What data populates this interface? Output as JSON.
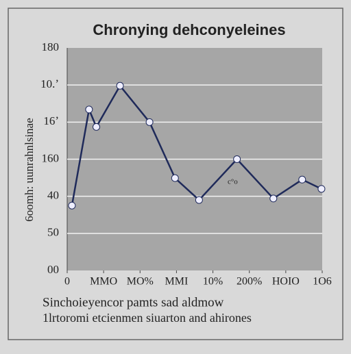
{
  "chart_data": {
    "type": "line",
    "title": "Chronying dehconyeleines",
    "y_label": "6oomh: uunrahnlsinae",
    "caption": [
      "Sinchoieyencor pamts sad aldmow",
      "1lrtoromi etcienmen siuarton and ahirones"
    ],
    "annotation": "c°o",
    "x": [
      0.13,
      0.6,
      0.8,
      1.45,
      2.26,
      2.96,
      3.62,
      4.66,
      5.66,
      6.45,
      6.98
    ],
    "series": [
      {
        "color": "#1f2a5a",
        "values": [
          1.75,
          4.34,
          3.87,
          4.98,
          4.0,
          2.49,
          1.9,
          3.0,
          1.94,
          2.45,
          2.2
        ]
      }
    ],
    "xlim": [
      0,
      7
    ],
    "xticks": [
      {
        "value": 0,
        "label": "0"
      },
      {
        "value": 1,
        "label": "MMO"
      },
      {
        "value": 2,
        "label": "MO%"
      },
      {
        "value": 3,
        "label": "MMI"
      },
      {
        "value": 4,
        "label": "10%"
      },
      {
        "value": 5,
        "label": "200%"
      },
      {
        "value": 6,
        "label": "HOIO"
      },
      {
        "value": 7,
        "label": "1O6"
      }
    ],
    "ylim": [
      0,
      6
    ],
    "yticks": [
      {
        "value": 0,
        "label": "00"
      },
      {
        "value": 1,
        "label": "50"
      },
      {
        "value": 2,
        "label": "40"
      },
      {
        "value": 3,
        "label": "160"
      },
      {
        "value": 4,
        "label": "16ʼ"
      },
      {
        "value": 5,
        "label": "10.ʼ"
      },
      {
        "value": 6,
        "label": "180"
      }
    ],
    "grid": true
  }
}
